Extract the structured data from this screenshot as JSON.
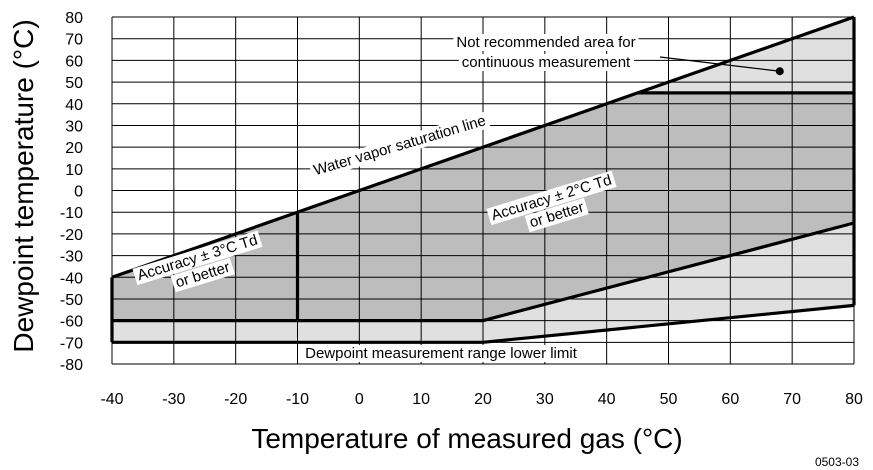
{
  "chart_data": {
    "type": "area",
    "xlabel": "Temperature of measured gas (°C)",
    "ylabel": "Dewpoint temperature (°C)",
    "xlim": [
      -40,
      80
    ],
    "ylim": [
      -80,
      80
    ],
    "x_ticks": [
      -40,
      -30,
      -20,
      -10,
      0,
      10,
      20,
      30,
      40,
      50,
      60,
      70,
      80
    ],
    "y_ticks": [
      80,
      70,
      60,
      50,
      40,
      30,
      20,
      10,
      0,
      -10,
      -20,
      -30,
      -40,
      -50,
      -60,
      -70,
      -80
    ],
    "x_tick_labels": [
      "-40",
      "-30",
      "-20",
      "-10",
      "0",
      "10",
      "20",
      "30",
      "40",
      "50",
      "60",
      "70",
      "80"
    ],
    "y_tick_labels": [
      "80",
      "70",
      "60",
      "50",
      "40",
      "30",
      "20",
      "10",
      "0",
      "-10",
      "-20",
      "-30",
      "-40",
      "-50",
      "-60",
      "-70",
      "-80"
    ],
    "grid": true,
    "colors": {
      "light": "#e0e0e0",
      "dark": "#bdbdbd",
      "line": "#000000"
    },
    "regions": [
      {
        "shade": "light",
        "points": [
          [
            -40,
            -40
          ],
          [
            80,
            80
          ],
          [
            80,
            -53
          ],
          [
            20,
            -70
          ],
          [
            -40,
            -70
          ]
        ]
      },
      {
        "shade": "dark",
        "points": [
          [
            -40,
            -40
          ],
          [
            45,
            45
          ],
          [
            80,
            45
          ],
          [
            80,
            -15
          ],
          [
            20,
            -60
          ],
          [
            -40,
            -60
          ]
        ]
      }
    ],
    "lines": [
      {
        "points": [
          [
            -40,
            -40
          ],
          [
            80,
            80
          ]
        ]
      },
      {
        "points": [
          [
            80,
            80
          ],
          [
            80,
            -53
          ]
        ]
      },
      {
        "points": [
          [
            -40,
            -70
          ],
          [
            20,
            -70
          ],
          [
            80,
            -53
          ]
        ]
      },
      {
        "points": [
          [
            -40,
            -40
          ],
          [
            -40,
            -70
          ]
        ]
      },
      {
        "points": [
          [
            45,
            45
          ],
          [
            80,
            45
          ]
        ]
      },
      {
        "points": [
          [
            -40,
            -60
          ],
          [
            20,
            -60
          ],
          [
            80,
            -15
          ]
        ]
      },
      {
        "points": [
          [
            -10,
            -10
          ],
          [
            -10,
            -60
          ]
        ]
      }
    ],
    "marker": {
      "x": 68,
      "y": 55
    },
    "annotations": {
      "not_recommended_line1": "Not recommended area for",
      "not_recommended_line2": "continuous measurement",
      "saturation_line": "Water vapor saturation line",
      "acc3_line1": "Accuracy  ± 3°C Td",
      "acc3_line2": "or better",
      "acc2_line1": "Accuracy  ± 2°C Td",
      "acc2_line2": "or better",
      "lower_limit": "Dewpoint measurement range lower limit"
    },
    "figure_code": "0503-03"
  }
}
